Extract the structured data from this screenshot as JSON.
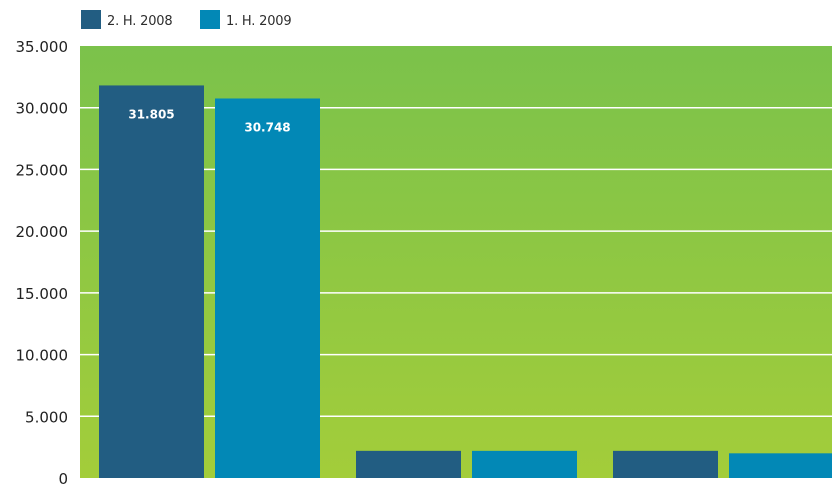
{
  "chart_data": {
    "type": "bar",
    "title": "",
    "xlabel": "",
    "ylabel": "",
    "categories": [
      "",
      "",
      ""
    ],
    "series": [
      {
        "name": "2. H. 2008",
        "color": "#225d82",
        "values": [
          31805,
          2200,
          2200
        ]
      },
      {
        "name": "1. H. 2009",
        "color": "#0288b6",
        "values": [
          30748,
          2200,
          2000
        ]
      }
    ],
    "data_labels": [
      [
        "31.805",
        "",
        ""
      ],
      [
        "30.748",
        "",
        ""
      ]
    ],
    "ylim": [
      0,
      35000
    ],
    "yticks": [
      0,
      5000,
      10000,
      15000,
      20000,
      25000,
      30000,
      35000
    ],
    "ytick_labels": [
      "0",
      "5.000",
      "10.000",
      "15.000",
      "20.000",
      "25.000",
      "30.000",
      "35.000"
    ],
    "grid": true,
    "legend_position": "top-left",
    "background_gradient": [
      "#7bc24b",
      "#a3cd3a"
    ],
    "grid_color": "#ffffff"
  }
}
